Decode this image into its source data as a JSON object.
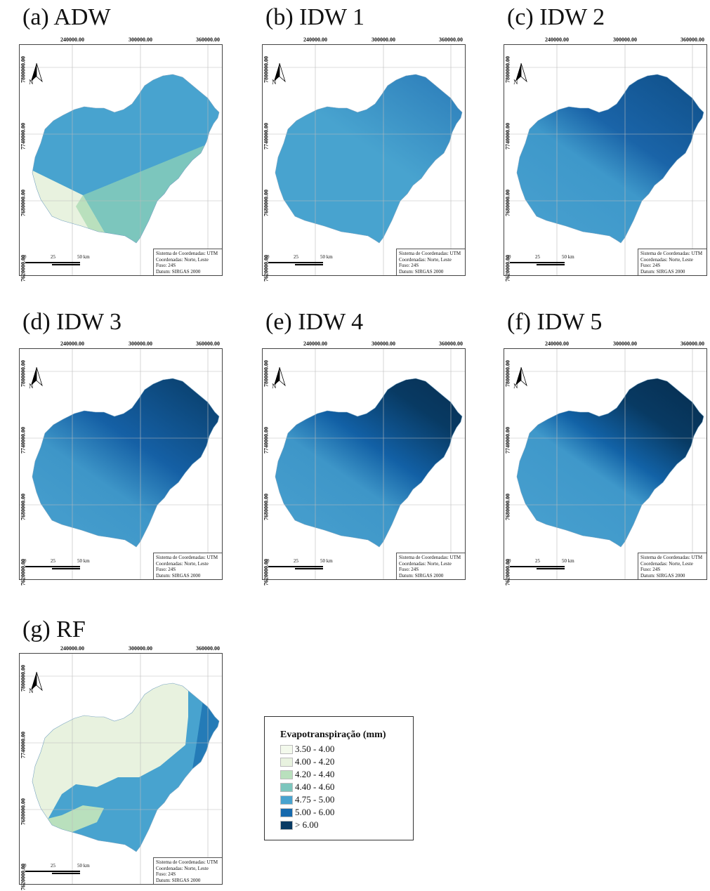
{
  "panels": [
    {
      "id": "a",
      "title": "(a) ADW",
      "style": "adw"
    },
    {
      "id": "b",
      "title": "(b) IDW 1",
      "style": "idw1"
    },
    {
      "id": "c",
      "title": "(c) IDW 2",
      "style": "idw2"
    },
    {
      "id": "d",
      "title": "(d) IDW 3",
      "style": "idw3"
    },
    {
      "id": "e",
      "title": "(e) IDW 4",
      "style": "idw4"
    },
    {
      "id": "f",
      "title": "(f) IDW 5",
      "style": "idw5"
    },
    {
      "id": "g",
      "title": "(g) RF",
      "style": "rf"
    }
  ],
  "map_labels": {
    "x_ticks": [
      "240000.00",
      "300000.00",
      "360000.00"
    ],
    "y_ticks": [
      "7800000.00",
      "7740000.00",
      "7680000.00",
      "7620000.00"
    ],
    "north_label": "N",
    "scale_labels": [
      "0",
      "25",
      "50 km"
    ],
    "info_lines": [
      "Sistema de Coordenadas: UTM",
      "Coordenadas: Norte, Leste",
      "Fuso: 24S",
      "Datum: SIRGAS 2000"
    ]
  },
  "legend": {
    "title": "Evapotranspiração (mm)",
    "items": [
      {
        "label": "3.50 - 4.00",
        "color": "#f3f9ec"
      },
      {
        "label": "4.00 - 4.20",
        "color": "#e8f2df"
      },
      {
        "label": "4.20 - 4.40",
        "color": "#b9e0bd"
      },
      {
        "label": "4.40 - 4.60",
        "color": "#7cc6bd"
      },
      {
        "label": "4.75 - 5.00",
        "color": "#48a3cf"
      },
      {
        "label": "5.00 - 6.00",
        "color": "#1569ad"
      },
      {
        "label": "> 6.00",
        "color": "#083a63"
      }
    ]
  }
}
